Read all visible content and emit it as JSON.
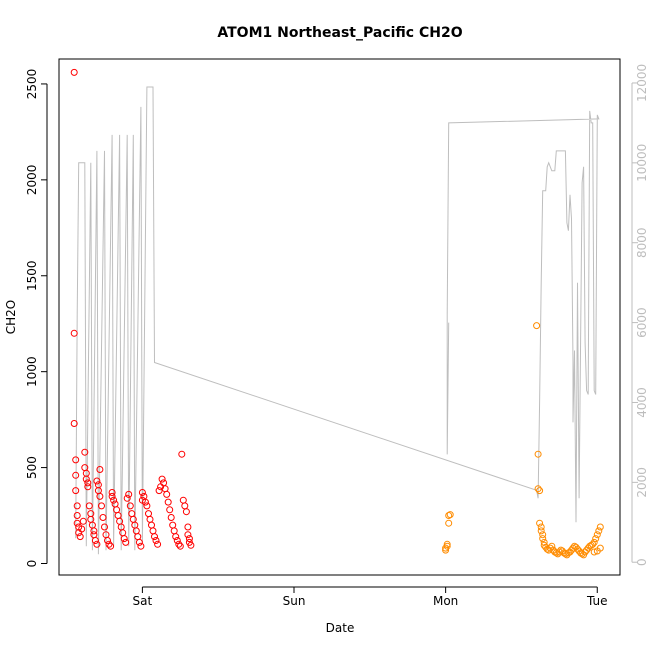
{
  "chart_data": {
    "type": "scatter",
    "title": "ATOM1 Northeast_Pacific CH2O",
    "xlabel": "Date",
    "ylabel": "CH2O",
    "x_unit": "days (Fri 00:00 = 0)",
    "xlim": [
      0.45,
      4.15
    ],
    "ylim": [
      -60,
      2630
    ],
    "y2lim": [
      -320,
      12600
    ],
    "x_ticks": [
      {
        "label": "Sat",
        "value": 1
      },
      {
        "label": "Sun",
        "value": 2
      },
      {
        "label": "Mon",
        "value": 3
      },
      {
        "label": "Tue",
        "value": 4
      }
    ],
    "y_ticks": [
      0,
      500,
      1000,
      1500,
      2000,
      2500
    ],
    "y2_ticks": [
      0,
      2000,
      4000,
      6000,
      8000,
      10000,
      12000
    ],
    "grid": false,
    "colors": {
      "series1": "#ff0000",
      "series2": "#ff8c00",
      "altitude_line": "#bebebe",
      "axis": "#000000",
      "right_axis": "#bdbdbd"
    },
    "series": [
      {
        "color": "#ff0000",
        "marker": "circle-open",
        "points": [
          [
            0.55,
            2560
          ],
          [
            0.55,
            1200
          ],
          [
            0.55,
            730
          ],
          [
            0.56,
            540
          ],
          [
            0.56,
            460
          ],
          [
            0.56,
            380
          ],
          [
            0.57,
            300
          ],
          [
            0.57,
            250
          ],
          [
            0.57,
            210
          ],
          [
            0.58,
            190
          ],
          [
            0.58,
            160
          ],
          [
            0.59,
            140
          ],
          [
            0.6,
            180
          ],
          [
            0.61,
            220
          ],
          [
            0.62,
            580
          ],
          [
            0.62,
            500
          ],
          [
            0.63,
            470
          ],
          [
            0.63,
            440
          ],
          [
            0.64,
            420
          ],
          [
            0.64,
            400
          ],
          [
            0.65,
            300
          ],
          [
            0.66,
            260
          ],
          [
            0.66,
            230
          ],
          [
            0.67,
            200
          ],
          [
            0.68,
            170
          ],
          [
            0.68,
            150
          ],
          [
            0.69,
            120
          ],
          [
            0.7,
            100
          ],
          [
            0.7,
            430
          ],
          [
            0.71,
            410
          ],
          [
            0.71,
            380
          ],
          [
            0.72,
            350
          ],
          [
            0.72,
            490
          ],
          [
            0.73,
            300
          ],
          [
            0.74,
            240
          ],
          [
            0.75,
            190
          ],
          [
            0.76,
            150
          ],
          [
            0.77,
            120
          ],
          [
            0.78,
            100
          ],
          [
            0.79,
            90
          ],
          [
            0.8,
            350
          ],
          [
            0.8,
            370
          ],
          [
            0.81,
            330
          ],
          [
            0.82,
            310
          ],
          [
            0.83,
            280
          ],
          [
            0.84,
            250
          ],
          [
            0.85,
            220
          ],
          [
            0.86,
            190
          ],
          [
            0.87,
            160
          ],
          [
            0.88,
            130
          ],
          [
            0.89,
            110
          ],
          [
            0.9,
            340
          ],
          [
            0.91,
            360
          ],
          [
            0.92,
            300
          ],
          [
            0.93,
            260
          ],
          [
            0.94,
            230
          ],
          [
            0.95,
            200
          ],
          [
            0.96,
            170
          ],
          [
            0.97,
            140
          ],
          [
            0.98,
            110
          ],
          [
            0.99,
            90
          ],
          [
            1.0,
            330
          ],
          [
            1.0,
            370
          ],
          [
            1.01,
            350
          ],
          [
            1.02,
            320
          ],
          [
            1.03,
            300
          ],
          [
            1.04,
            260
          ],
          [
            1.05,
            230
          ],
          [
            1.06,
            200
          ],
          [
            1.07,
            170
          ],
          [
            1.08,
            140
          ],
          [
            1.09,
            120
          ],
          [
            1.1,
            100
          ],
          [
            1.11,
            380
          ],
          [
            1.12,
            400
          ],
          [
            1.13,
            440
          ],
          [
            1.14,
            420
          ],
          [
            1.15,
            390
          ],
          [
            1.16,
            360
          ],
          [
            1.17,
            320
          ],
          [
            1.18,
            280
          ],
          [
            1.19,
            240
          ],
          [
            1.2,
            200
          ],
          [
            1.21,
            170
          ],
          [
            1.22,
            140
          ],
          [
            1.23,
            120
          ],
          [
            1.24,
            100
          ],
          [
            1.25,
            90
          ],
          [
            1.26,
            570
          ],
          [
            1.27,
            330
          ],
          [
            1.28,
            300
          ],
          [
            1.29,
            270
          ],
          [
            1.3,
            190
          ],
          [
            1.3,
            150
          ],
          [
            1.31,
            130
          ],
          [
            1.31,
            110
          ],
          [
            1.32,
            95
          ]
        ]
      },
      {
        "color": "#ff8c00",
        "marker": "circle-open",
        "points": [
          [
            3.0,
            70
          ],
          [
            3.0,
            80
          ],
          [
            3.01,
            90
          ],
          [
            3.01,
            100
          ],
          [
            3.02,
            210
          ],
          [
            3.02,
            250
          ],
          [
            3.03,
            255
          ],
          [
            3.6,
            1240
          ],
          [
            3.61,
            570
          ],
          [
            3.61,
            390
          ],
          [
            3.62,
            380
          ],
          [
            3.62,
            210
          ],
          [
            3.63,
            190
          ],
          [
            3.63,
            170
          ],
          [
            3.64,
            150
          ],
          [
            3.64,
            130
          ],
          [
            3.65,
            110
          ],
          [
            3.65,
            95
          ],
          [
            3.66,
            85
          ],
          [
            3.67,
            75
          ],
          [
            3.68,
            70
          ],
          [
            3.69,
            80
          ],
          [
            3.7,
            90
          ],
          [
            3.71,
            70
          ],
          [
            3.72,
            60
          ],
          [
            3.73,
            55
          ],
          [
            3.74,
            50
          ],
          [
            3.75,
            60
          ],
          [
            3.76,
            70
          ],
          [
            3.77,
            65
          ],
          [
            3.78,
            55
          ],
          [
            3.79,
            50
          ],
          [
            3.8,
            45
          ],
          [
            3.81,
            55
          ],
          [
            3.82,
            60
          ],
          [
            3.83,
            70
          ],
          [
            3.84,
            80
          ],
          [
            3.85,
            90
          ],
          [
            3.86,
            85
          ],
          [
            3.87,
            75
          ],
          [
            3.88,
            65
          ],
          [
            3.89,
            55
          ],
          [
            3.9,
            50
          ],
          [
            3.91,
            45
          ],
          [
            3.92,
            60
          ],
          [
            3.93,
            70
          ],
          [
            3.94,
            80
          ],
          [
            3.95,
            90
          ],
          [
            3.96,
            95
          ],
          [
            3.97,
            100
          ],
          [
            3.98,
            110
          ],
          [
            3.99,
            130
          ],
          [
            4.0,
            150
          ],
          [
            4.01,
            170
          ],
          [
            4.02,
            190
          ],
          [
            3.98,
            60
          ],
          [
            4.0,
            65
          ],
          [
            4.02,
            80
          ]
        ]
      }
    ],
    "altitude_line": {
      "color": "#bebebe",
      "axis": "right",
      "points": [
        [
          0.56,
          600
        ],
        [
          0.57,
          6200
        ],
        [
          0.58,
          10000
        ],
        [
          0.62,
          10000
        ],
        [
          0.63,
          400
        ],
        [
          0.66,
          10000
        ],
        [
          0.67,
          300
        ],
        [
          0.7,
          10300
        ],
        [
          0.71,
          200
        ],
        [
          0.75,
          10300
        ],
        [
          0.76,
          300
        ],
        [
          0.8,
          10700
        ],
        [
          0.81,
          400
        ],
        [
          0.85,
          10700
        ],
        [
          0.86,
          300
        ],
        [
          0.9,
          10700
        ],
        [
          0.91,
          400
        ],
        [
          0.94,
          10700
        ],
        [
          0.95,
          300
        ],
        [
          0.99,
          11400
        ],
        [
          1.0,
          500
        ],
        [
          1.03,
          11900
        ],
        [
          1.06,
          11900
        ],
        [
          1.07,
          11900
        ],
        [
          1.08,
          5000
        ],
        [
          3.6,
          1800
        ],
        [
          3.61,
          1600
        ],
        [
          3.62,
          4000
        ],
        [
          3.63,
          7000
        ],
        [
          3.64,
          9300
        ],
        [
          3.66,
          9300
        ],
        [
          3.67,
          9900
        ],
        [
          3.68,
          10000
        ],
        [
          3.7,
          9800
        ],
        [
          3.72,
          9800
        ],
        [
          3.73,
          10300
        ],
        [
          3.79,
          10300
        ],
        [
          3.8,
          8500
        ],
        [
          3.81,
          8300
        ],
        [
          3.82,
          9200
        ],
        [
          3.83,
          8600
        ],
        [
          3.84,
          5000
        ],
        [
          3.84,
          3500
        ],
        [
          3.85,
          5300
        ],
        [
          3.86,
          1000
        ],
        [
          3.87,
          7000
        ],
        [
          3.88,
          1600
        ],
        [
          3.9,
          9500
        ],
        [
          3.91,
          9900
        ],
        [
          3.92,
          5500
        ],
        [
          3.93,
          4300
        ],
        [
          3.94,
          4200
        ],
        [
          3.95,
          11300
        ],
        [
          3.96,
          11000
        ],
        [
          3.97,
          11000
        ],
        [
          3.98,
          4300
        ],
        [
          3.99,
          4200
        ],
        [
          4.0,
          11200
        ],
        [
          4.01,
          11100
        ],
        [
          3.02,
          11000
        ],
        [
          3.01,
          6200
        ],
        [
          3.01,
          2700
        ],
        [
          3.02,
          6000
        ]
      ]
    }
  }
}
